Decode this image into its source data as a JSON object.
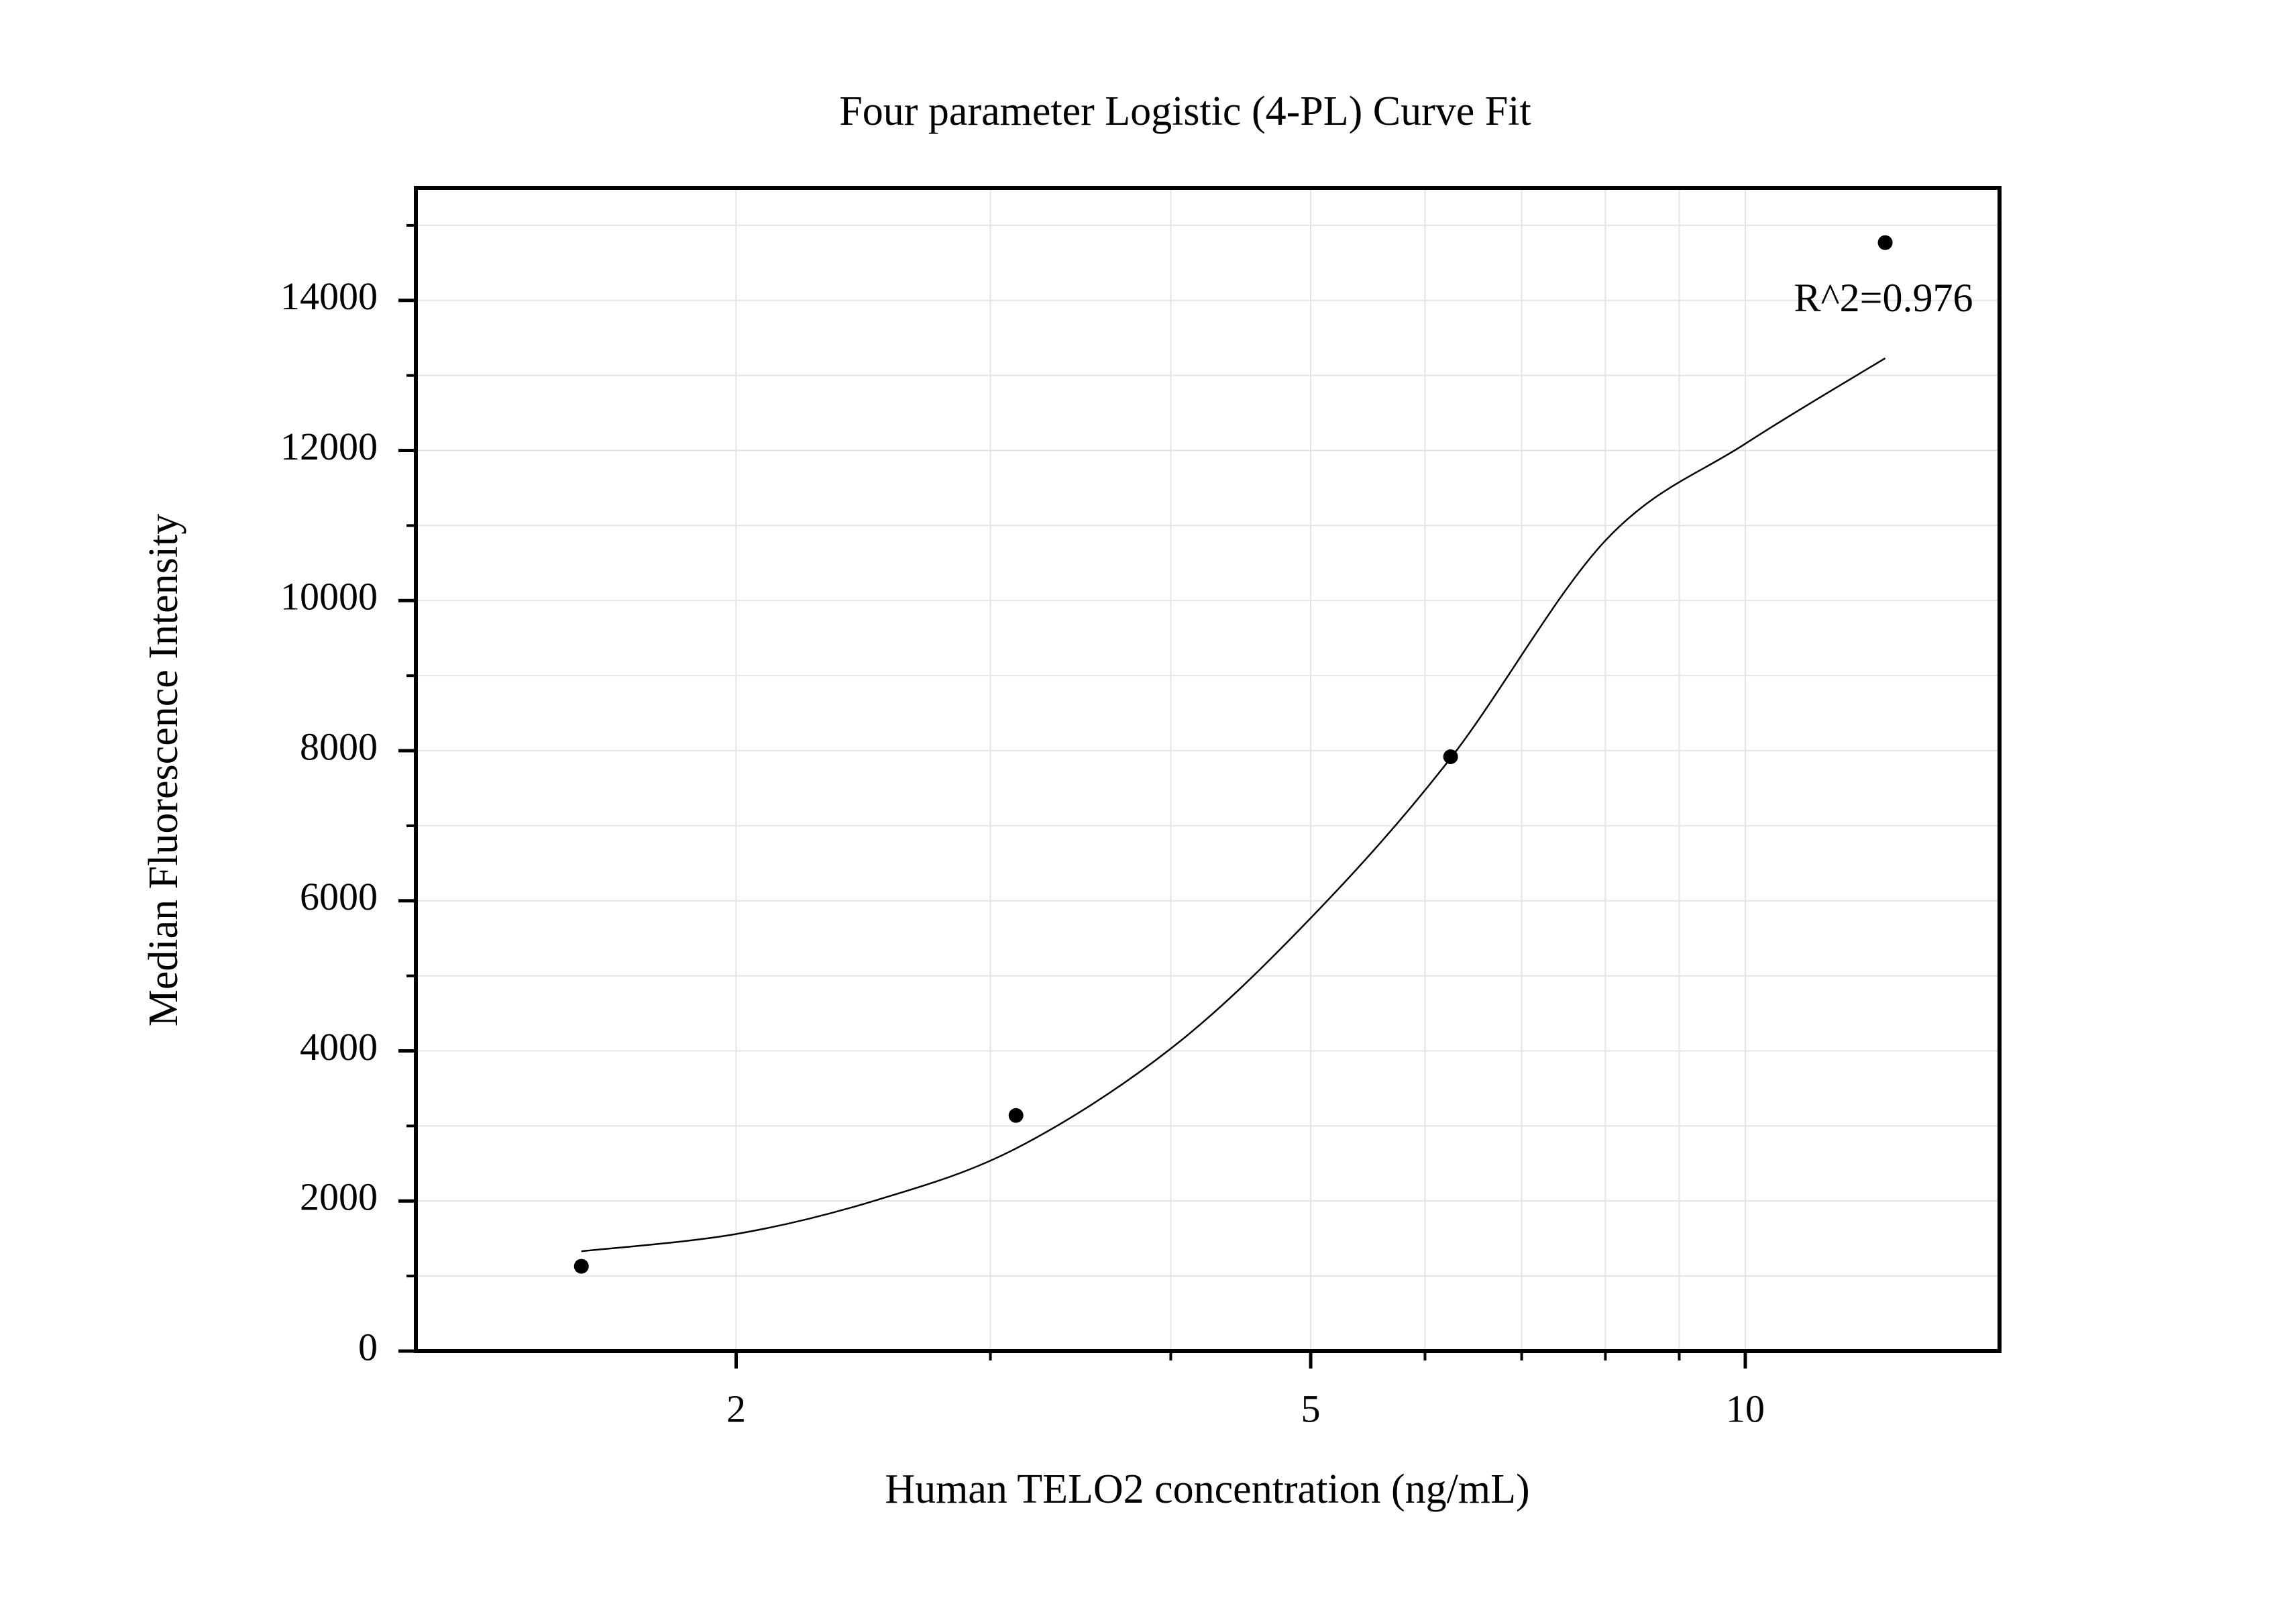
{
  "chart_data": {
    "type": "scatter",
    "title": "Four parameter Logistic (4-PL) Curve Fit",
    "x_label": "Human TELO2 concentration (ng/mL)",
    "y_label": "Median Fluorescence Intensity",
    "x_scale": "log",
    "xlim": [
      1.2,
      15
    ],
    "xticks": [
      2,
      5,
      10
    ],
    "xminorticks": [
      3,
      4,
      6,
      7,
      8,
      9
    ],
    "ylim": [
      0,
      15500
    ],
    "yticks": [
      0,
      2000,
      4000,
      6000,
      8000,
      10000,
      12000,
      14000
    ],
    "yminorticks": [
      1000,
      3000,
      5000,
      7000,
      9000,
      11000,
      13000,
      15000
    ],
    "grid": true,
    "annotation": "R^2=0.976",
    "points": {
      "color": "#000000",
      "x": [
        1.5625,
        3.125,
        6.25,
        12.5
      ],
      "values": [
        1130,
        3140,
        7920,
        14770
      ]
    },
    "fit": {
      "color": "#000000",
      "x": [
        1.5625,
        2,
        2.5,
        3.125,
        4,
        5,
        6.25,
        8,
        10,
        12.5
      ],
      "values": [
        1330,
        1560,
        2010,
        2700,
        4030,
        5770,
        7900,
        10800,
        12090,
        13230
      ]
    }
  }
}
